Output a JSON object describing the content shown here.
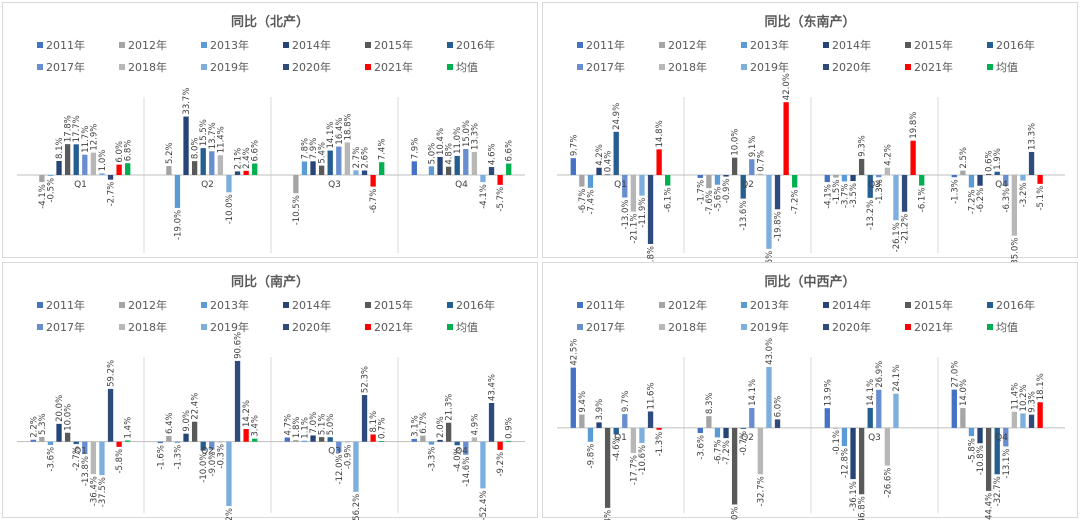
{
  "legend": {
    "labels": [
      "2011年",
      "2012年",
      "2013年",
      "2014年",
      "2015年",
      "2016年",
      "2017年",
      "2018年",
      "2019年",
      "2020年",
      "2021年",
      "均值"
    ],
    "colors": [
      "#4472c4",
      "#a5a5a5",
      "#5b9bd5",
      "#264478",
      "#595959",
      "#255e91",
      "#698ed0",
      "#b7b7b7",
      "#7cafdd",
      "#2f4b7c",
      "#ff0000",
      "#00b050"
    ]
  },
  "chart_data": [
    {
      "type": "bar",
      "title": "同比（北产）",
      "categories": [
        "Q1",
        "Q2",
        "Q3",
        "Q4"
      ],
      "ylim": [
        -45,
        45
      ],
      "values": [
        [
          null,
          -4.1,
          -0.5,
          8.1,
          17.8,
          17.7,
          11.7,
          12.9,
          1.0,
          -2.7,
          6.0,
          6.8
        ],
        [
          null,
          5.2,
          -19.0,
          33.7,
          8.0,
          15.5,
          13.7,
          11.4,
          -10.0,
          2.1,
          2.4,
          6.6
        ],
        [
          null,
          -10.5,
          7.8,
          7.9,
          5.4,
          14.1,
          16.4,
          18.8,
          2.7,
          2.6,
          -6.7,
          7.4
        ],
        [
          7.9,
          null,
          5.0,
          10.4,
          4.8,
          11.0,
          15.0,
          13.3,
          -4.1,
          4.6,
          -5.7,
          6.6
        ]
      ],
      "value_labels": [
        [
          null,
          "-4.1%",
          "-0.5%",
          "8.1%",
          "17.8%",
          "17.7%",
          "11.7%",
          "12.9%",
          "1.0%",
          "-2.7%",
          "6.0%",
          "6.8%"
        ],
        [
          null,
          "5.2%",
          "-19.0%",
          "33.7%",
          "8.0%",
          "15.5%",
          "13.7%",
          "11.4%",
          "-10.0%",
          "2.1%",
          "2.4%",
          "6.6%"
        ],
        [
          null,
          "-10.5%",
          "7.8%",
          "7.9%",
          "5.4%",
          "14.1%",
          "16.4%",
          "18.8%",
          "2.7%",
          "2.6%",
          "-6.7%",
          "7.4%"
        ],
        [
          "7.9%",
          null,
          "5.0%",
          "10.4%",
          "4.8%",
          "11.0%",
          "15.0%",
          "13.3%",
          "-4.1%",
          "4.6%",
          "-5.7%",
          "6.6%"
        ]
      ]
    },
    {
      "type": "bar",
      "title": "同比（东南产）",
      "categories": [
        "Q1",
        "Q2",
        "Q3",
        "Q4"
      ],
      "ylim": [
        -45,
        45
      ],
      "values": [
        [
          9.7,
          -6.7,
          -7.4,
          4.2,
          0.4,
          24.9,
          -13.0,
          -21.1,
          -11.9,
          -39.8,
          14.8,
          -6.1
        ],
        [
          -1.7,
          -7.6,
          -5.6,
          -0.9,
          10.0,
          -13.6,
          9.1,
          0.7,
          -42.6,
          -19.8,
          42.0,
          -7.2
        ],
        [
          -4.1,
          -1.5,
          -3.7,
          -3.5,
          9.3,
          -13.2,
          -1.3,
          4.2,
          -26.1,
          -21.2,
          19.8,
          -6.1
        ],
        [
          -1.3,
          2.5,
          -7.2,
          -6.2,
          0.6,
          1.9,
          -6.3,
          -35.0,
          -3.2,
          13.3,
          -5.1,
          null
        ]
      ],
      "value_labels": [
        [
          "9.7%",
          "-6.7%",
          "-7.4%",
          "4.2%",
          "0.4%",
          "24.9%",
          "-13.0%",
          "-21.1%",
          "-11.9%",
          "-39.8%",
          "14.8%",
          "-6.1%"
        ],
        [
          "-1.7%",
          "-7.6%",
          "-5.6%",
          "-0.9%",
          "10.0%",
          "-13.6%",
          "9.1%",
          "0.7%",
          "-42.6%",
          "-19.8%",
          "42.0%",
          "-7.2%"
        ],
        [
          "-4.1%",
          "-1.5%",
          "-3.7%",
          "-3.5%",
          "9.3%",
          "-13.2%",
          "-1.3%",
          "4.2%",
          "-26.1%",
          "-21.2%",
          "19.8%",
          "-6.1%"
        ],
        [
          "-1.3%",
          "2.5%",
          "-7.2%",
          "-6.2%",
          "0.6%",
          "1.9%",
          "-6.3%",
          "-35.0%",
          "-3.2%",
          "13.3%",
          "-5.1%",
          null
        ]
      ]
    },
    {
      "type": "bar",
      "title": "同比（南产）",
      "categories": [
        "Q1",
        "Q2",
        "Q3",
        "Q4"
      ],
      "ylim": [
        -80,
        95
      ],
      "values": [
        [
          2.2,
          5.3,
          -3.6,
          20.0,
          10.0,
          -2.7,
          -13.8,
          -36.4,
          -37.5,
          59.2,
          -5.8,
          1.4
        ],
        [
          -1.6,
          6.4,
          -1.3,
          9.0,
          22.4,
          -10.0,
          -9.0,
          -0.3,
          -72.2,
          90.6,
          14.2,
          3.4
        ],
        [
          4.7,
          1.8,
          1.1,
          7.0,
          5.1,
          5.0,
          -12.0,
          -0.9,
          -56.2,
          52.3,
          8.1,
          0.7
        ],
        [
          3.1,
          6.7,
          -3.3,
          2.0,
          21.3,
          -4.0,
          -14.6,
          4.9,
          -52.4,
          43.4,
          -9.2,
          0.9
        ]
      ],
      "value_labels": [
        [
          "2.2%",
          "5.3%",
          "-3.6%",
          "20.0%",
          "10.0%",
          "-2.7%",
          "-13.8%",
          "-36.4%",
          "-37.5%",
          "59.2%",
          "-5.8%",
          "1.4%"
        ],
        [
          "-1.6%",
          "6.4%",
          "-1.3%",
          "9.0%",
          "22.4%",
          "-10.0%",
          "-9.0%",
          "-0.3%",
          "-72.2%",
          "90.6%",
          "14.2%",
          "3.4%"
        ],
        [
          "4.7%",
          "1.8%",
          "1.1%",
          "7.0%",
          "5.1%",
          "5.0%",
          "-12.0%",
          "-0.9%",
          "-56.2%",
          "52.3%",
          "8.1%",
          "0.7%"
        ],
        [
          "3.1%",
          "6.7%",
          "-3.3%",
          "2.0%",
          "21.3%",
          "-4.0%",
          "-14.6%",
          "4.9%",
          "-52.4%",
          "43.4%",
          "-9.2%",
          "0.9%"
        ]
      ]
    },
    {
      "type": "bar",
      "title": "同比（中西产）",
      "categories": [
        "Q1",
        "Q2",
        "Q3",
        "Q4"
      ],
      "ylim": [
        -60,
        50
      ],
      "values": [
        [
          42.5,
          9.4,
          -9.8,
          3.9,
          -56.4,
          -4.6,
          9.7,
          -17.7,
          -10.6,
          11.6,
          -1.3,
          null
        ],
        [
          -3.6,
          8.3,
          -6.7,
          -7.2,
          -54.0,
          -0.7,
          14.1,
          -32.7,
          43.0,
          6.0,
          null,
          null
        ],
        [
          13.9,
          -0.1,
          -12.8,
          -36.1,
          -46.8,
          14.1,
          26.9,
          -26.6,
          24.1,
          null,
          null,
          null
        ],
        [
          27.0,
          14.0,
          -5.8,
          -10.8,
          -44.4,
          -32.7,
          -13.1,
          11.4,
          10.2,
          9.3,
          18.1,
          null
        ]
      ],
      "value_labels": [
        [
          "42.5%",
          "9.4%",
          "-9.8%",
          "3.9%",
          "-56.4%",
          "-4.6%",
          "9.7%",
          "-17.7%",
          "-10.6%",
          "11.6%",
          "-1.3%",
          null
        ],
        [
          "-3.6%",
          "8.3%",
          "-6.7%",
          "-7.2%",
          "-54.0%",
          "-0.7%",
          "14.1%",
          "-32.7%",
          "43.0%",
          "6.0%",
          null,
          null
        ],
        [
          "13.9%",
          "-0.1%",
          "-12.8%",
          "-36.1%",
          "-46.8%",
          "14.1%",
          "26.9%",
          "-26.6%",
          "24.1%",
          null,
          null,
          null
        ],
        [
          "27.0%",
          "14.0%",
          "-5.8%",
          "-10.8%",
          "-44.4%",
          "-32.7%",
          "-13.1%",
          "11.4%",
          "10.2%",
          "9.3%",
          "18.1%",
          null
        ]
      ]
    }
  ]
}
